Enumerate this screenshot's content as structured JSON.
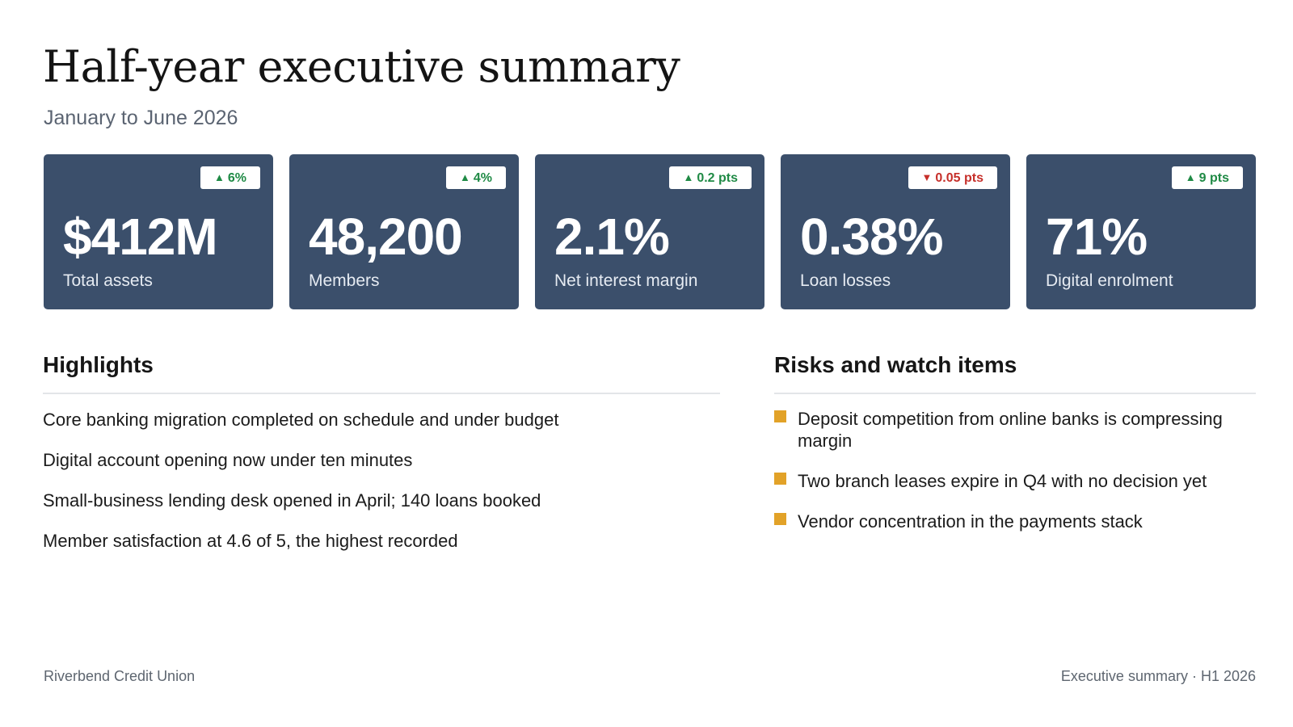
{
  "header": {
    "title": "Half-year executive summary",
    "subtitle": "January to June 2026"
  },
  "colors": {
    "card_background": "#3b4f6b",
    "positive": "#1f8a45",
    "negative": "#c62f2a",
    "risk_bullet": "#e2a228"
  },
  "kpis": [
    {
      "value": "$412M",
      "label": "Total assets",
      "change": "6%",
      "direction": "up",
      "arrow": "▲"
    },
    {
      "value": "48,200",
      "label": "Members",
      "change": "4%",
      "direction": "up",
      "arrow": "▲"
    },
    {
      "value": "2.1%",
      "label": "Net interest margin",
      "change": "0.2 pts",
      "direction": "up",
      "arrow": "▲"
    },
    {
      "value": "0.38%",
      "label": "Loan losses",
      "change": "0.05 pts",
      "direction": "down",
      "arrow": "▼"
    },
    {
      "value": "71%",
      "label": "Digital enrolment",
      "change": "9 pts",
      "direction": "up",
      "arrow": "▲"
    }
  ],
  "highlights": {
    "heading": "Highlights",
    "items": [
      "Core banking migration completed on schedule and under budget",
      "Digital account opening now under ten minutes",
      "Small-business lending desk opened in April; 140 loans booked",
      "Member satisfaction at 4.6 of 5, the highest recorded"
    ]
  },
  "risks": {
    "heading": "Risks and watch items",
    "items": [
      "Deposit competition from online banks is compressing margin",
      "Two branch leases expire in Q4 with no decision yet",
      "Vendor concentration in the payments stack"
    ]
  },
  "footer": {
    "left": "Riverbend Credit Union",
    "right": "Executive summary · H1 2026"
  }
}
